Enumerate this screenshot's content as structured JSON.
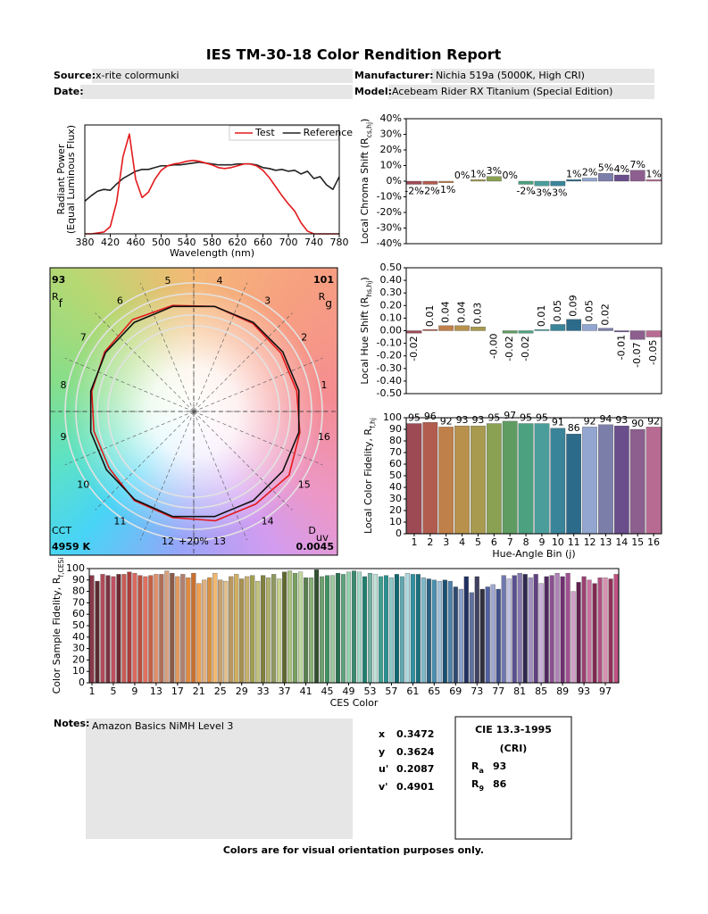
{
  "header": {
    "title": "IES TM-30-18 Color Rendition Report",
    "source_label": "Source:",
    "source": "x-rite colormunki",
    "manufacturer_label": "Manufacturer:",
    "manufacturer": "Nichia 519a (5000K, High CRI)",
    "date_label": "Date:",
    "model_label": "Model:",
    "model": "Acebeam Rider RX Titanium (Special Edition)"
  },
  "chart_data": [
    {
      "type": "line",
      "xlabel": "Wavelength (nm)",
      "ylabel": [
        "Radiant Power",
        "(Equal Luminous Flux)"
      ],
      "x": [
        380,
        390,
        400,
        410,
        420,
        430,
        440,
        450,
        460,
        470,
        480,
        490,
        500,
        510,
        520,
        530,
        540,
        550,
        560,
        570,
        580,
        590,
        600,
        610,
        620,
        630,
        640,
        650,
        660,
        670,
        680,
        690,
        700,
        710,
        720,
        730,
        740,
        750,
        760,
        770,
        780
      ],
      "xlim": [
        380,
        780
      ],
      "xticks": [
        380,
        420,
        460,
        500,
        540,
        580,
        620,
        660,
        700,
        740,
        780
      ],
      "ylim": [
        0,
        1.2
      ],
      "legend": "upper right",
      "series": [
        {
          "name": "Test",
          "color": "#e41a1c",
          "values": [
            0,
            0,
            0.01,
            0.02,
            0.08,
            0.35,
            0.85,
            1.1,
            0.6,
            0.4,
            0.46,
            0.6,
            0.7,
            0.75,
            0.77,
            0.78,
            0.8,
            0.81,
            0.8,
            0.78,
            0.76,
            0.73,
            0.72,
            0.73,
            0.75,
            0.77,
            0.77,
            0.75,
            0.7,
            0.62,
            0.52,
            0.42,
            0.33,
            0.25,
            0.12,
            0.03,
            0,
            0,
            0,
            0,
            0
          ]
        },
        {
          "name": "Reference",
          "color": "#222222",
          "values": [
            0.36,
            0.42,
            0.47,
            0.49,
            0.48,
            0.55,
            0.61,
            0.65,
            0.69,
            0.71,
            0.71,
            0.73,
            0.75,
            0.75,
            0.76,
            0.76,
            0.77,
            0.78,
            0.79,
            0.78,
            0.77,
            0.76,
            0.76,
            0.76,
            0.77,
            0.77,
            0.77,
            0.76,
            0.73,
            0.72,
            0.7,
            0.71,
            0.69,
            0.7,
            0.66,
            0.69,
            0.61,
            0.63,
            0.54,
            0.49,
            0.63
          ]
        }
      ]
    },
    {
      "type": "polar",
      "rf": 93,
      "rf_label": [
        "R",
        "f"
      ],
      "rg": 101,
      "rg_label": [
        "R",
        "g"
      ],
      "cct_label": "CCT",
      "cct": "4959 K",
      "duv_label": [
        "D",
        "uv"
      ],
      "duv": 0.0045,
      "ring_label": "+20%",
      "bins": [
        1,
        2,
        3,
        4,
        5,
        6,
        7,
        8,
        9,
        10,
        11,
        12,
        13,
        14,
        15,
        16
      ],
      "series": [
        {
          "color": "#e41a1c",
          "values": [
            0.98,
            0.98,
            0.99,
            1.0,
            1.01,
            1.03,
            1.0,
            0.97,
            0.95,
            0.95,
            1.0,
            1.01,
            1.04,
            1.04,
            1.07,
            1.01
          ]
        },
        {
          "color": "#111111",
          "values": [
            1.0,
            1.0,
            1.0,
            1.0,
            1.0,
            1.0,
            0.99,
            0.98,
            0.98,
            0.98,
            0.99,
            1.0,
            1.0,
            1.0,
            1.0,
            1.0
          ]
        }
      ]
    },
    {
      "type": "bar",
      "ylabel": [
        "Local Chroma Shift (R",
        "cs,hj",
        ")"
      ],
      "values": [
        -2,
        -2,
        -1,
        0,
        1,
        3,
        0,
        -2,
        -3,
        -3,
        1,
        2,
        5,
        4,
        7,
        1
      ],
      "value_labels": [
        "-2%",
        "-2%",
        "-1%",
        "0%",
        "1%",
        "3%",
        "0%",
        "-2%",
        "-3%",
        "-3%",
        "1%",
        "2%",
        "5%",
        "4%",
        "7%",
        "1%"
      ],
      "data_labels": true,
      "colors": [
        "#9e4a55",
        "#b15c4f",
        "#c0804a",
        "#b8924c",
        "#a89b50",
        "#8aa052",
        "#5e9c62",
        "#4ba180",
        "#4a9d9a",
        "#3a8499",
        "#2d6b8a",
        "#93a6d0",
        "#7c7eaa",
        "#6a4e8c",
        "#8c5f8e",
        "#b86b92"
      ],
      "ylim": [
        -40,
        40
      ],
      "yticks": [
        {
          "value": -40,
          "label": "-40%"
        },
        {
          "value": -30,
          "label": "-30%"
        },
        {
          "value": -20,
          "label": "-20%"
        },
        {
          "value": -10,
          "label": "-10%"
        },
        {
          "value": 0,
          "label": "0%"
        },
        {
          "value": 10,
          "label": "10%"
        },
        {
          "value": 20,
          "label": "20%"
        },
        {
          "value": 30,
          "label": "30%"
        },
        {
          "value": 40,
          "label": "40%"
        }
      ]
    },
    {
      "type": "bar",
      "ylabel": [
        "Local Hue Shift (R",
        "hs,hj",
        ")"
      ],
      "values": [
        -0.02,
        0.01,
        0.04,
        0.04,
        0.03,
        -0.0,
        -0.02,
        -0.02,
        0.01,
        0.05,
        0.09,
        0.05,
        0.02,
        -0.01,
        -0.07,
        -0.05
      ],
      "value_labels": [
        "-0.02",
        "0.01",
        "0.04",
        "0.04",
        "0.03",
        "-0.00",
        "-0.02",
        "-0.02",
        "0.01",
        "0.05",
        "0.09",
        "0.05",
        "0.02",
        "-0.01",
        "-0.07",
        "-0.05"
      ],
      "data_labels": true,
      "data_label_rotation": 90,
      "colors": [
        "#9e4a55",
        "#b15c4f",
        "#c0804a",
        "#b8924c",
        "#a89b50",
        "#8aa052",
        "#5e9c62",
        "#4ba180",
        "#4a9d9a",
        "#3a8499",
        "#2d6b8a",
        "#93a6d0",
        "#7c7eaa",
        "#6a4e8c",
        "#8c5f8e",
        "#b86b92"
      ],
      "ylim": [
        -0.5,
        0.5
      ],
      "yticks": [
        {
          "value": -0.5,
          "label": "-0.50"
        },
        {
          "value": -0.4,
          "label": "-0.40"
        },
        {
          "value": -0.3,
          "label": "-0.30"
        },
        {
          "value": -0.2,
          "label": "-0.20"
        },
        {
          "value": -0.1,
          "label": "-0.10"
        },
        {
          "value": 0,
          "label": "0.00"
        },
        {
          "value": 0.1,
          "label": "0.10"
        },
        {
          "value": 0.2,
          "label": "0.20"
        },
        {
          "value": 0.3,
          "label": "0.30"
        },
        {
          "value": 0.4,
          "label": "0.40"
        },
        {
          "value": 0.5,
          "label": "0.50"
        }
      ]
    },
    {
      "type": "bar",
      "ylabel": [
        "Local Color Fidelity, R",
        "f,hj"
      ],
      "xlabel": "Hue-Angle Bin (j)",
      "categories": [
        1,
        2,
        3,
        4,
        5,
        6,
        7,
        8,
        9,
        10,
        11,
        12,
        13,
        14,
        15,
        16
      ],
      "values": [
        95,
        96,
        92,
        93,
        93,
        95,
        97,
        95,
        95,
        91,
        86,
        92,
        94,
        93,
        90,
        92
      ],
      "data_labels": true,
      "colors": [
        "#9e4a55",
        "#b15c4f",
        "#c0804a",
        "#b8924c",
        "#a89b50",
        "#8aa052",
        "#5e9c62",
        "#4ba180",
        "#4a9d9a",
        "#3a8499",
        "#2d6b8a",
        "#93a6d0",
        "#7c7eaa",
        "#6a4e8c",
        "#8c5f8e",
        "#b86b92"
      ],
      "ylim": [
        0,
        100
      ],
      "yticks": [
        0,
        10,
        20,
        30,
        40,
        50,
        60,
        70,
        80,
        90,
        100
      ]
    },
    {
      "type": "bar",
      "ylabel": [
        "Color Sample Fidelity, R",
        "f,CESi"
      ],
      "xlabel": "CES Color",
      "categories": [
        1,
        null,
        null,
        null,
        5,
        null,
        null,
        null,
        9,
        null,
        null,
        null,
        13,
        null,
        null,
        null,
        17,
        null,
        null,
        null,
        21,
        null,
        null,
        null,
        25,
        null,
        null,
        null,
        29,
        null,
        null,
        null,
        33,
        null,
        null,
        null,
        37,
        null,
        null,
        null,
        41,
        null,
        null,
        null,
        45,
        null,
        null,
        null,
        49,
        null,
        null,
        null,
        53,
        null,
        null,
        null,
        57,
        null,
        null,
        null,
        61,
        null,
        null,
        null,
        65,
        null,
        null,
        null,
        69,
        null,
        null,
        null,
        73,
        null,
        null,
        null,
        77,
        null,
        null,
        null,
        81,
        null,
        null,
        null,
        85,
        null,
        null,
        null,
        89,
        null,
        null,
        null,
        93,
        null,
        null,
        null,
        97,
        null,
        null
      ],
      "values": [
        94,
        89,
        95,
        94,
        93,
        95,
        95,
        97,
        96,
        94,
        93,
        94,
        95,
        95,
        98,
        96,
        93,
        95,
        92,
        96,
        87,
        90,
        92,
        96,
        90,
        89,
        93,
        95,
        91,
        93,
        94,
        89,
        94,
        92,
        95,
        91,
        97,
        98,
        96,
        97,
        92,
        92,
        99,
        93,
        94,
        94,
        96,
        95,
        97,
        98,
        97,
        93,
        96,
        95,
        93,
        94,
        92,
        95,
        93,
        96,
        95,
        95,
        92,
        91,
        90,
        89,
        90,
        89,
        84,
        82,
        93,
        79,
        93,
        82,
        84,
        86,
        82,
        94,
        91,
        94,
        96,
        95,
        92,
        95,
        87,
        93,
        94,
        96,
        93,
        96,
        80,
        88,
        93,
        90,
        87,
        92,
        92,
        91,
        95
      ],
      "colors": [
        "#8b3a4a",
        "#5a2a30",
        "#b04a58",
        "#7a3340",
        "#c05060",
        "#6a2830",
        "#c65a55",
        "#a83d3a",
        "#d86a60",
        "#b85040",
        "#e07060",
        "#c46048",
        "#e0906a",
        "#b07058",
        "#d8a080",
        "#8a5a48",
        "#e09860",
        "#b08070",
        "#e08a40",
        "#c87030",
        "#f0a050",
        "#e0b080",
        "#d89040",
        "#f0b870",
        "#c8a070",
        "#e0c090",
        "#b89860",
        "#d0b060",
        "#a89050",
        "#c8b070",
        "#a0a050",
        "#c0c080",
        "#808040",
        "#b0b070",
        "#909860",
        "#c8d090",
        "#606830",
        "#a8c080",
        "#78a060",
        "#c0d8a0",
        "#5a8050",
        "#88b078",
        "#305030",
        "#70a070",
        "#409060",
        "#a0c8a0",
        "#2a7050",
        "#60a080",
        "#98d0b0",
        "#3a8a70",
        "#a8d8c8",
        "#208070",
        "#70b0a0",
        "#c0e0d8",
        "#40a090",
        "#2a9090",
        "#90c8c8",
        "#106870",
        "#60a8b0",
        "#b0d8e0",
        "#3090a0",
        "#1a7080",
        "#80b8c8",
        "#2a6080",
        "#4a90b0",
        "#a0c0d8",
        "#1a5070",
        "#5080a8",
        "#304a70",
        "#8aa0c8",
        "#203060",
        "#6070a0",
        "#404060",
        "#303040",
        "#5060a0",
        "#a0a8d0",
        "#40508a",
        "#7078b0",
        "#c0c0e0",
        "#5a5090",
        "#8878b0",
        "#302850",
        "#a090c0",
        "#604080",
        "#c8b0d8",
        "#502860",
        "#8a5090",
        "#b080b8",
        "#703070",
        "#a05090",
        "#d0a0c8",
        "#602050",
        "#9a4070",
        "#c870a0",
        "#802850",
        "#b05080",
        "#d890b0",
        "#903058",
        "#c05080"
      ],
      "ylim": [
        0,
        100
      ],
      "yticks": [
        0,
        10,
        20,
        30,
        40,
        50,
        60,
        70,
        80,
        90,
        100
      ]
    }
  ],
  "notes": {
    "label": "Notes:",
    "text": "Amazon Basics NiMH Level 3"
  },
  "colorimetry": {
    "labels": [
      "x",
      "y",
      "u'",
      "v'"
    ],
    "values": [
      0.3472,
      0.3624,
      0.2087,
      0.4901
    ]
  },
  "cri": {
    "title": "CIE 13.3-1995",
    "subtitle": "(CRI)",
    "ra_label": [
      "R",
      "a"
    ],
    "ra": 93,
    "r9_label": [
      "R",
      "9"
    ],
    "r9": 86
  },
  "footer": "Colors are for visual orientation purposes only."
}
